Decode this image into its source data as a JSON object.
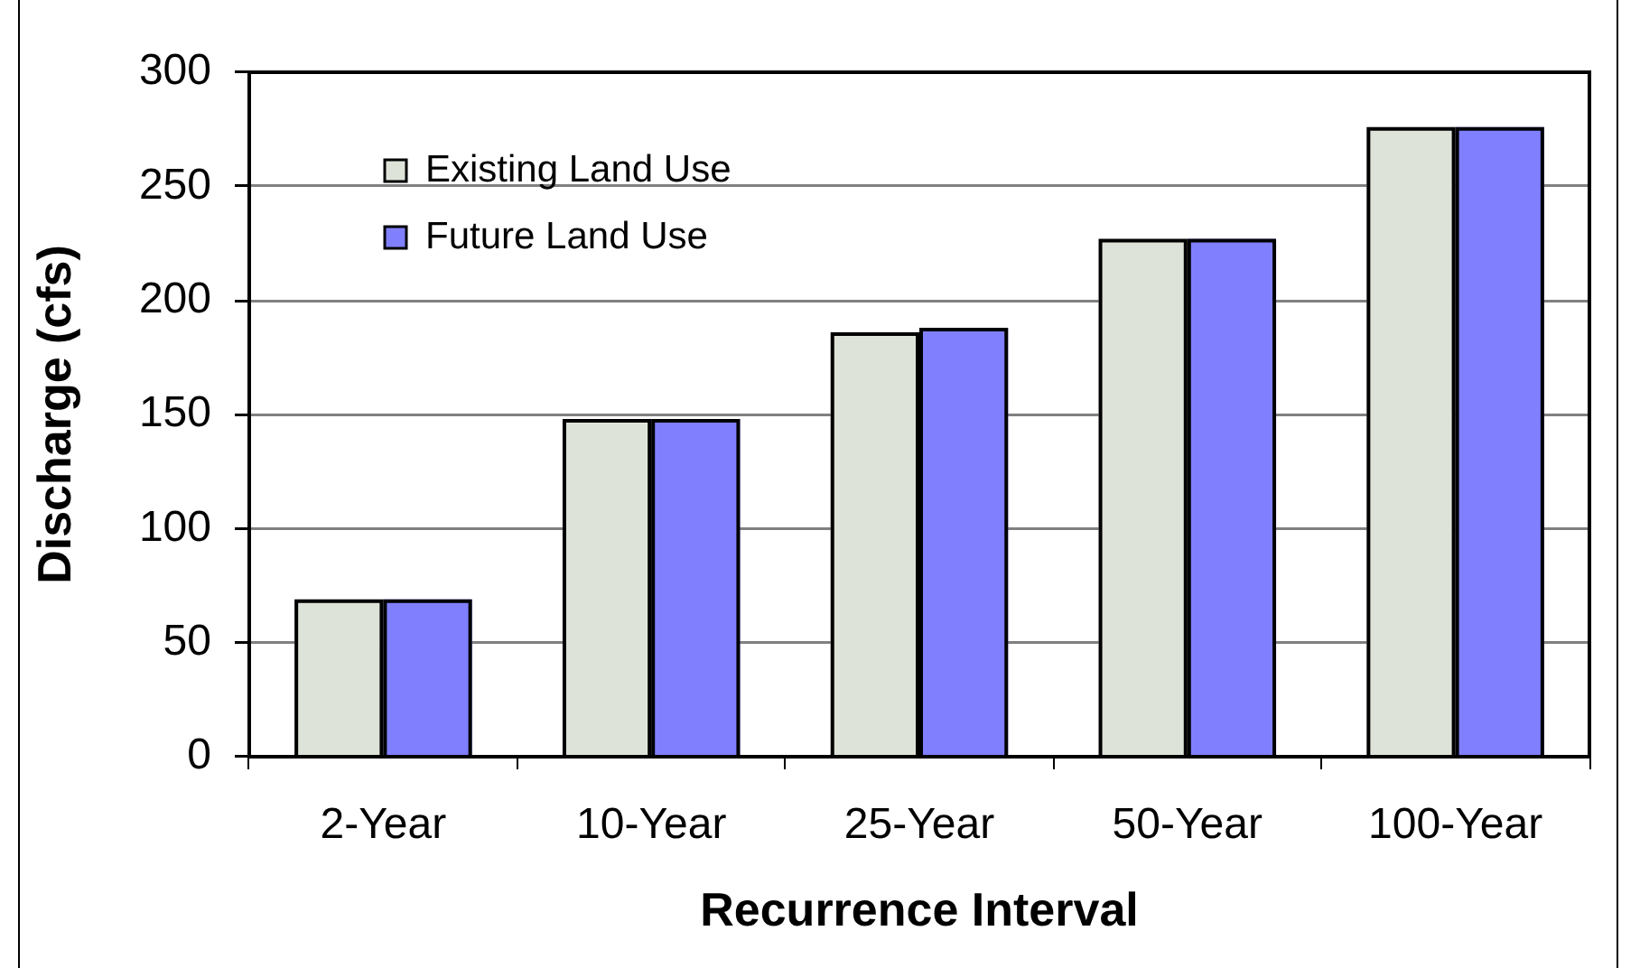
{
  "chart_data": {
    "type": "bar",
    "xlabel": "Recurrence Interval",
    "ylabel": "Discharge (cfs)",
    "categories": [
      "2-Year",
      "10-Year",
      "25-Year",
      "50-Year",
      "100-Year"
    ],
    "series": [
      {
        "name": "Existing Land Use",
        "color": "#dde3d8",
        "values": [
          69,
          148,
          186,
          227,
          276
        ]
      },
      {
        "name": "Future Land Use",
        "color": "#8080ff",
        "values": [
          69,
          148,
          188,
          227,
          276
        ]
      }
    ],
    "ylim": [
      0,
      300
    ],
    "yticks": [
      0,
      50,
      100,
      150,
      200,
      250,
      300
    ],
    "grid": "y",
    "legend": "top left"
  }
}
